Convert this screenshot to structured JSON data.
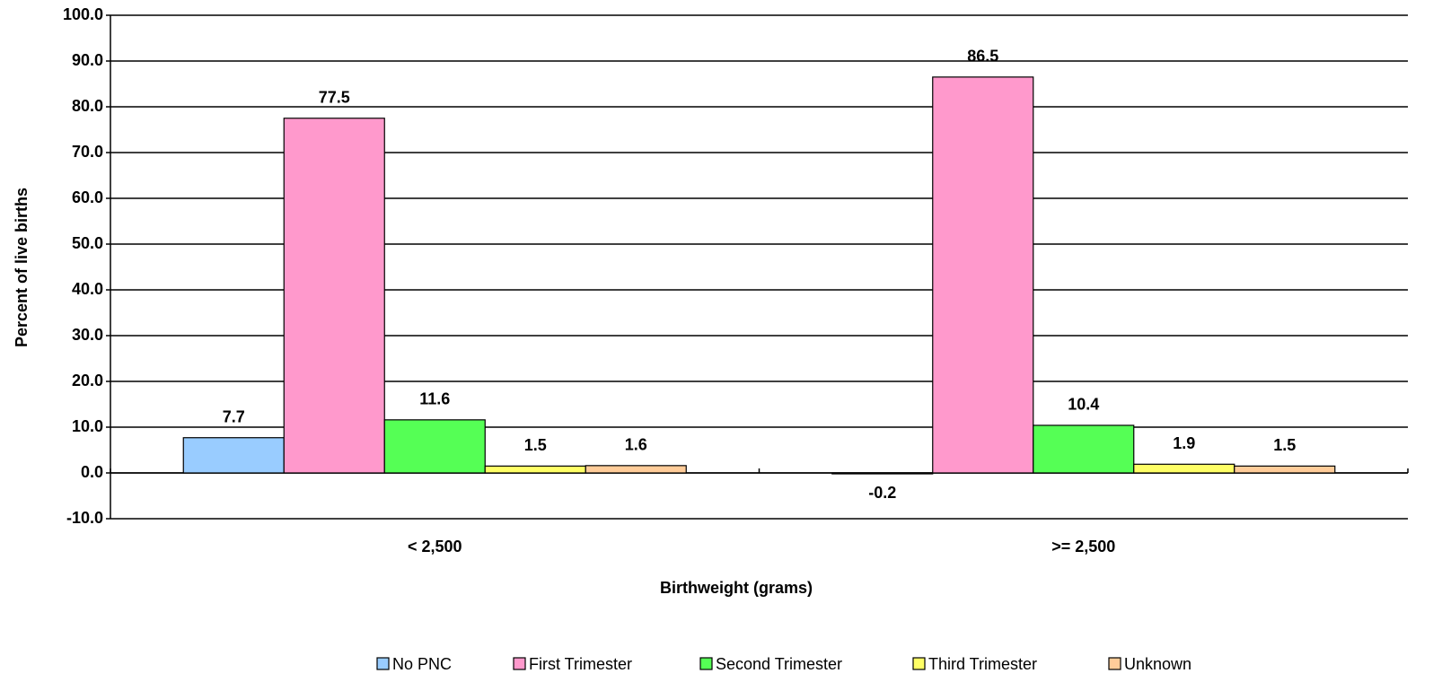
{
  "chart_data": {
    "type": "bar",
    "x_label": "Birthweight (grams)",
    "y_label": "Percent of live births",
    "categories": [
      "< 2,500",
      ">= 2,500"
    ],
    "series": [
      {
        "name": "No PNC",
        "color": "#99ccff",
        "values": [
          7.7,
          -0.2
        ]
      },
      {
        "name": "First Trimester",
        "color": "#ff99cc",
        "values": [
          77.5,
          86.5
        ]
      },
      {
        "name": "Second Trimester",
        "color": "#55ff55",
        "values": [
          11.6,
          10.4
        ]
      },
      {
        "name": "Third Trimester",
        "color": "#ffff66",
        "values": [
          1.5,
          1.9
        ]
      },
      {
        "name": "Unknown",
        "color": "#ffcc99",
        "values": [
          1.6,
          1.5
        ]
      }
    ],
    "ylim": [
      -10,
      100
    ],
    "yticks": [
      {
        "value": -10,
        "label": "-10.0"
      },
      {
        "value": 0,
        "label": "0.0"
      },
      {
        "value": 10,
        "label": "10.0"
      },
      {
        "value": 20,
        "label": "20.0"
      },
      {
        "value": 30,
        "label": "30.0"
      },
      {
        "value": 40,
        "label": "40.0"
      },
      {
        "value": 50,
        "label": "50.0"
      },
      {
        "value": 60,
        "label": "60.0"
      },
      {
        "value": 70,
        "label": "70.0"
      },
      {
        "value": 80,
        "label": "80.0"
      },
      {
        "value": 90,
        "label": "90.0"
      },
      {
        "value": 100,
        "label": "100.0"
      }
    ],
    "grid": true,
    "legend": "bottom"
  }
}
